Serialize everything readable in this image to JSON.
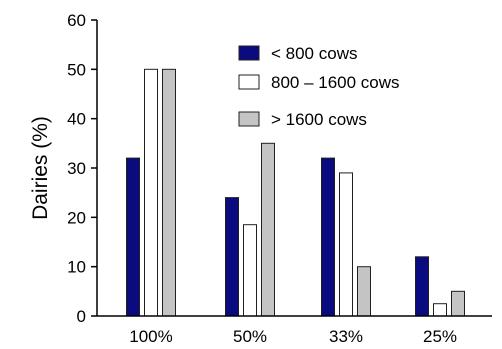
{
  "chart_data": {
    "type": "bar",
    "categories": [
      "100%",
      "50%",
      "33%",
      "25%"
    ],
    "series": [
      {
        "name": "< 800 cows",
        "values": [
          32,
          24,
          32,
          12
        ],
        "color": "#0b0b80"
      },
      {
        "name": "800 – 1600 cows",
        "values": [
          50,
          18.5,
          29,
          2.5
        ],
        "color": "#ffffff"
      },
      {
        "name": "> 1600 cows",
        "values": [
          50,
          35,
          10,
          5
        ],
        "color": "#c4c4c4"
      }
    ],
    "ylabel": "Dairies (%)",
    "xlabel": "",
    "ylim": [
      0,
      60
    ],
    "yticks": [
      0,
      10,
      20,
      30,
      40,
      50,
      60
    ],
    "grid": false,
    "legend_position": "top-right"
  }
}
